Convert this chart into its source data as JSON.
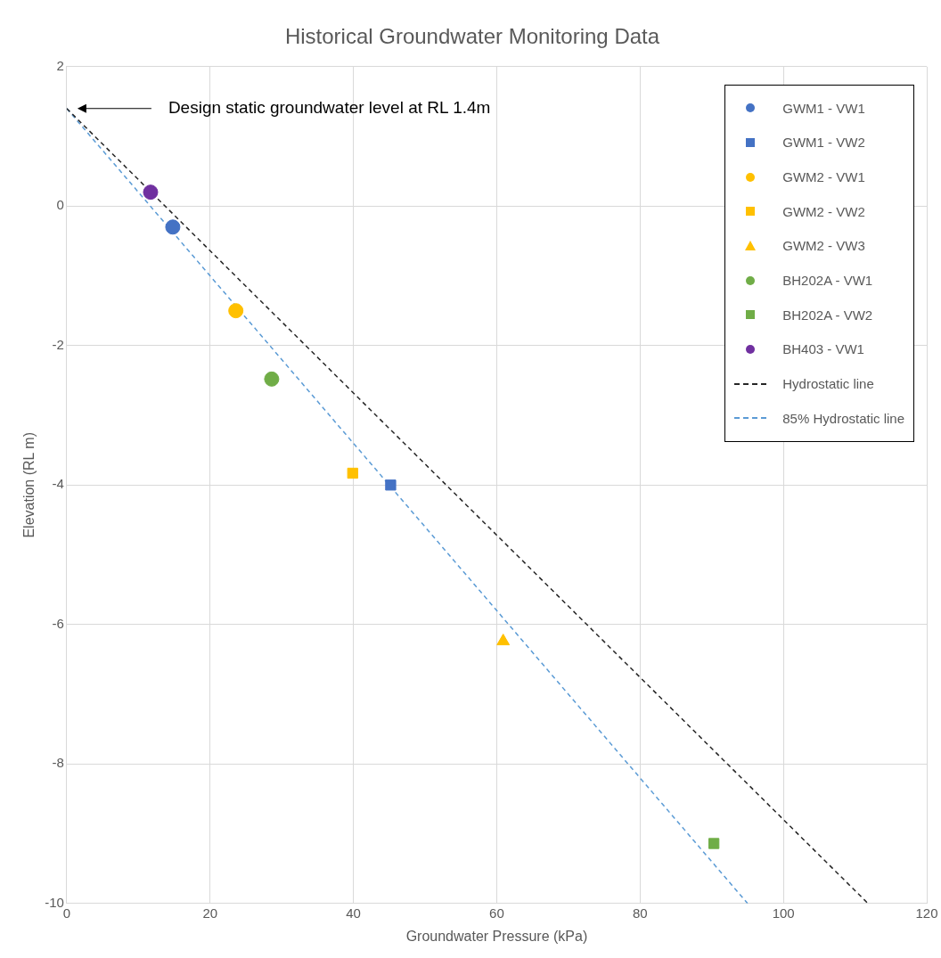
{
  "chart_data": {
    "type": "scatter",
    "title": "Historical Groundwater Monitoring Data",
    "xlabel": "Groundwater Pressure (kPa)",
    "ylabel": "Elevation (RL m)",
    "xlim": [
      0,
      120
    ],
    "xticks": [
      0,
      20,
      40,
      60,
      80,
      100,
      120
    ],
    "ylim": [
      -10,
      2
    ],
    "yticks": [
      -10,
      -8,
      -6,
      -4,
      -2,
      0,
      2
    ],
    "grid": true,
    "legend": "top right",
    "annotations": [
      "Design static groundwater level at RL 1.4m"
    ],
    "series": [
      {
        "name": "GWM1 - VW1",
        "color": "#4472c4",
        "marker": "circle",
        "x": [
          14.8
        ],
        "values": [
          -0.3
        ]
      },
      {
        "name": "GWM1 - VW2",
        "color": "#4472c4",
        "marker": "square",
        "x": [
          45.2
        ],
        "values": [
          -4.0
        ]
      },
      {
        "name": "GWM2 - VW1",
        "color": "#ffc000",
        "marker": "circle",
        "x": [
          23.6
        ],
        "values": [
          -1.5
        ]
      },
      {
        "name": "GWM2 - VW2",
        "color": "#ffc000",
        "marker": "square",
        "x": [
          39.9
        ],
        "values": [
          -3.83
        ]
      },
      {
        "name": "GWM2 - VW3",
        "color": "#ffc000",
        "marker": "triangle",
        "x": [
          60.9
        ],
        "values": [
          -6.24
        ]
      },
      {
        "name": "BH202A - VW1",
        "color": "#70ad47",
        "marker": "circle",
        "x": [
          28.6
        ],
        "values": [
          -2.48
        ]
      },
      {
        "name": "BH202A - VW2",
        "color": "#70ad47",
        "marker": "square",
        "x": [
          90.3
        ],
        "values": [
          -9.14
        ]
      },
      {
        "name": "BH403 - VW1",
        "color": "#7030a0",
        "marker": "circle",
        "x": [
          11.7
        ],
        "values": [
          0.2
        ]
      },
      {
        "name": "Hydrostatic line",
        "type": "line",
        "color": "#262626",
        "marker": "none",
        "line_style": "dashed",
        "x": [
          0,
          111.8
        ],
        "values": [
          1.4,
          -10
        ]
      },
      {
        "name": "85% Hydrostatic line",
        "type": "line",
        "color": "#5b9bd5",
        "marker": "none",
        "line_style": "dashed",
        "x": [
          0,
          95.0
        ],
        "values": [
          1.4,
          -10
        ]
      }
    ]
  }
}
